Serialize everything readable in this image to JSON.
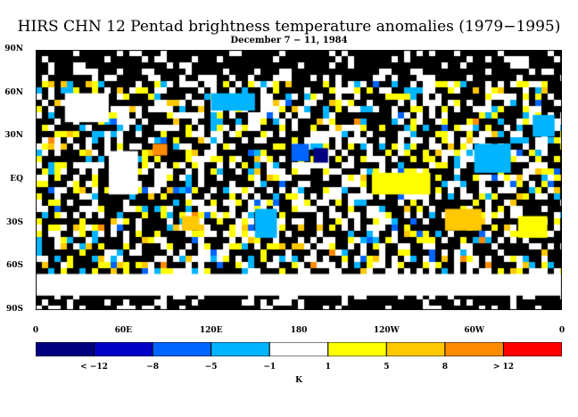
{
  "title": "HIRS CHN 12 Pentad brightness temperature anomalies (1979−1995)",
  "subtitle": "December 7 − 11, 1984",
  "lat_labels": [
    "90N",
    "60N",
    "30N",
    "EQ",
    "30S",
    "60S",
    "90S"
  ],
  "lon_labels": [
    "0",
    "60E",
    "120E",
    "180",
    "120W",
    "60W",
    "0"
  ],
  "colorbar": {
    "colors": [
      "#000080",
      "#0000c8",
      "#0064ff",
      "#00b4ff",
      "#ffffff",
      "#ffff00",
      "#ffc800",
      "#ff8c00",
      "#ff0000"
    ],
    "labels": [
      "< −12",
      "−8",
      "−5",
      "−1",
      "1",
      "5",
      "8",
      "> 12"
    ],
    "unit": "K"
  },
  "map_data": {
    "background": "#000000",
    "missing_color": "#ffffff",
    "patches": [
      {
        "lon": 20,
        "lat": 60,
        "w": 30,
        "h": 20,
        "color": "#ffffff"
      },
      {
        "lon": 50,
        "lat": 20,
        "w": 20,
        "h": 30,
        "color": "#ffffff"
      },
      {
        "lon": 80,
        "lat": 25,
        "w": 10,
        "h": 8,
        "color": "#ff8c00"
      },
      {
        "lon": 100,
        "lat": -25,
        "w": 12,
        "h": 10,
        "color": "#ffc800"
      },
      {
        "lon": 175,
        "lat": 25,
        "w": 12,
        "h": 12,
        "color": "#0064ff"
      },
      {
        "lon": 190,
        "lat": 22,
        "w": 10,
        "h": 10,
        "color": "#000080"
      },
      {
        "lon": 230,
        "lat": 5,
        "w": 40,
        "h": 15,
        "color": "#ffff00"
      },
      {
        "lon": 280,
        "lat": -20,
        "w": 25,
        "h": 15,
        "color": "#ffc800"
      },
      {
        "lon": 300,
        "lat": 25,
        "w": 25,
        "h": 20,
        "color": "#00b4ff"
      },
      {
        "lon": 150,
        "lat": -20,
        "w": 15,
        "h": 20,
        "color": "#00b4ff"
      },
      {
        "lon": 120,
        "lat": 60,
        "w": 30,
        "h": 12,
        "color": "#00b4ff"
      },
      {
        "lon": 330,
        "lat": -25,
        "w": 20,
        "h": 15,
        "color": "#ffff00"
      },
      {
        "lon": 340,
        "lat": 45,
        "w": 15,
        "h": 15,
        "color": "#00b4ff"
      },
      {
        "lon": 0,
        "lat": -65,
        "w": 360,
        "h": 15,
        "color": "#ffffff"
      }
    ]
  }
}
